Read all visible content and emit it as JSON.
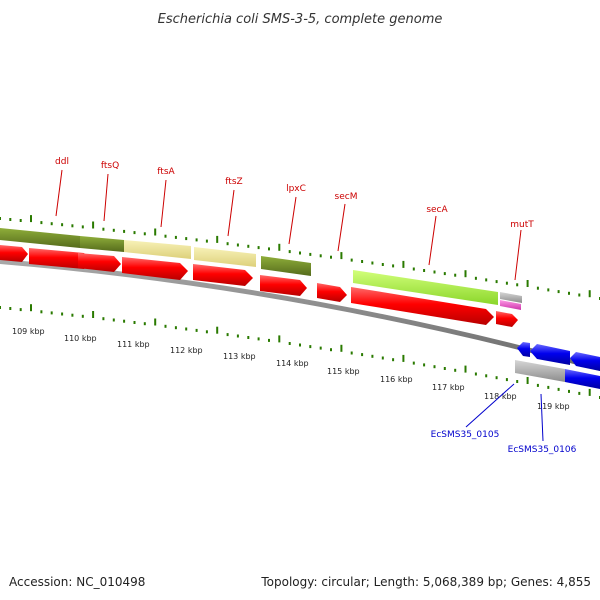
{
  "title": "Escherichia coli SMS-3-5, complete genome",
  "footer": {
    "accession": "Accession: NC_010498",
    "topology": "Topology: circular; Length: 5,068,389 bp; Genes: 4,855"
  },
  "scale_labels": [
    "109 kbp",
    "110 kbp",
    "111 kbp",
    "112 kbp",
    "113 kbp",
    "114 kbp",
    "115 kbp",
    "116 kbp",
    "117 kbp",
    "118 kbp",
    "119 kbp"
  ],
  "gene_labels_top": [
    "ddl",
    "ftsQ",
    "ftsA",
    "ftsZ",
    "lpxC",
    "secM",
    "secA",
    "mutT"
  ],
  "gene_labels_bottom": [
    "EcSMS35_0105",
    "EcSMS35_0106"
  ],
  "colors": {
    "cds_forward": "#ff0000",
    "cds_reverse": "#0000ee",
    "backbone": "#888888",
    "tick": "#2a7a00",
    "cog_olive": "#6b8a1e",
    "cog_khaki": "#f0e68c",
    "cog_lime": "#adff2f",
    "cog_gray": "#a9a9a9",
    "cog_magenta": "#ee66cc",
    "label_top": "#cc0000",
    "label_bottom": "#0000cc"
  }
}
